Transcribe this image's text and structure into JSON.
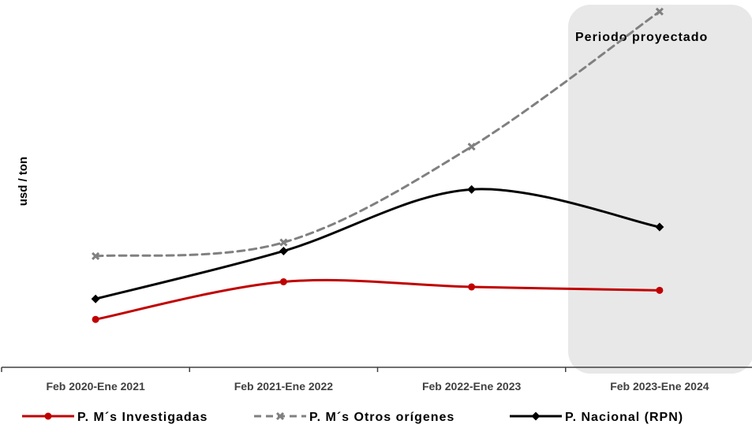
{
  "chart_data": {
    "type": "line",
    "categories": [
      "Feb 2020-Ene 2021",
      "Feb 2021-Ene 2022",
      "Feb 2022-Ene 2023",
      "Feb 2023-Ene 2024"
    ],
    "ylabel": "usd / ton",
    "xlabel": "",
    "ylim": [
      0,
      100
    ],
    "grid": false,
    "legend_position": "bottom",
    "annotation": "Periodo proyectado",
    "projected_categories": [
      "Feb 2023-Ene 2024"
    ],
    "series": [
      {
        "name": "P. M´s Investigadas",
        "color": "#c00000",
        "style": "solid",
        "marker": "circle",
        "values": [
          14,
          25,
          23.5,
          22.5
        ]
      },
      {
        "name": "P. M´s Otros orígenes",
        "color": "#808080",
        "style": "dashed",
        "marker": "x",
        "values": [
          32.5,
          36.5,
          64.5,
          104
        ]
      },
      {
        "name": "P. Nacional (RPN)",
        "color": "#000000",
        "style": "solid",
        "marker": "diamond",
        "values": [
          20,
          34,
          52,
          41
        ]
      }
    ]
  }
}
